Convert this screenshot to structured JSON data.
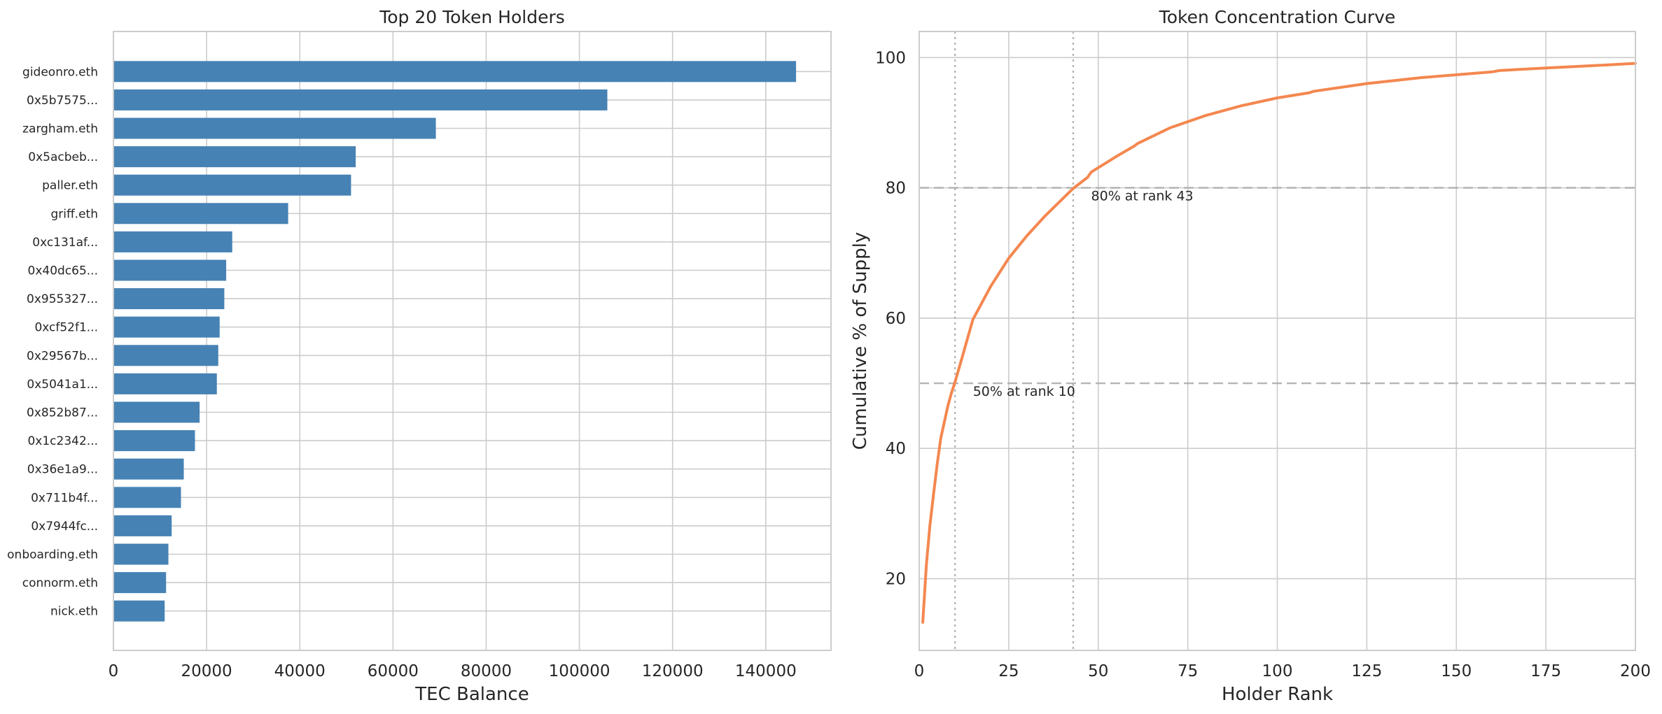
{
  "colors": {
    "bar": "#4682b4",
    "curve": "#f4874f",
    "grid": "#cccccc",
    "refline": "#a9a9a9"
  },
  "chart_data": [
    {
      "type": "bar",
      "orientation": "horizontal",
      "title": "Top 20 Token Holders",
      "xlabel": "TEC Balance",
      "ylabel": "",
      "xlim": [
        0,
        154000
      ],
      "xticks": [
        0,
        20000,
        40000,
        60000,
        80000,
        100000,
        120000,
        140000
      ],
      "xtick_labels": [
        "0",
        "20000",
        "40000",
        "60000",
        "80000",
        "100000",
        "120000",
        "140000"
      ],
      "grid": true,
      "categories": [
        "gideonro.eth",
        "0x5b7575...",
        "zargham.eth",
        "0x5acbeb...",
        "paller.eth",
        "griff.eth",
        "0xc131af...",
        "0x40dc65...",
        "0x955327...",
        "0xcf52f1...",
        "0x29567b...",
        "0x5041a1...",
        "0x852b87...",
        "0x1c2342...",
        "0x36e1a9...",
        "0x711b4f...",
        "0x7944fc...",
        "onboarding.eth",
        "connorm.eth",
        "nick.eth"
      ],
      "values": [
        146500,
        106000,
        69200,
        52000,
        51000,
        37500,
        25500,
        24200,
        23800,
        22800,
        22500,
        22200,
        18500,
        17500,
        15100,
        14500,
        12500,
        11800,
        11300,
        11000
      ]
    },
    {
      "type": "line",
      "title": "Token Concentration Curve",
      "xlabel": "Holder Rank",
      "ylabel": "Cumulative % of Supply",
      "xlim": [
        0,
        200
      ],
      "ylim": [
        9,
        104
      ],
      "xticks": [
        0,
        25,
        50,
        75,
        100,
        125,
        150,
        175,
        200
      ],
      "xtick_labels": [
        "0",
        "25",
        "50",
        "75",
        "100",
        "125",
        "150",
        "175",
        "200"
      ],
      "yticks": [
        20,
        40,
        60,
        80,
        100
      ],
      "ytick_labels": [
        "20",
        "40",
        "60",
        "80",
        "100"
      ],
      "grid": true,
      "x": [
        1,
        2,
        3,
        4,
        5,
        6,
        7,
        8,
        9,
        10,
        12,
        15,
        20,
        25,
        30,
        35,
        40,
        43,
        47,
        48,
        55,
        60,
        61,
        70,
        80,
        90,
        100,
        109,
        110,
        125,
        140,
        160,
        162,
        175,
        190,
        200
      ],
      "y": [
        13.3,
        22.1,
        28.2,
        33.0,
        37.5,
        41.5,
        44.0,
        46.5,
        48.5,
        50.2,
        54.0,
        59.8,
        64.9,
        69.2,
        72.6,
        75.6,
        78.3,
        79.9,
        81.6,
        82.4,
        84.8,
        86.4,
        86.8,
        89.2,
        91.1,
        92.6,
        93.8,
        94.6,
        94.8,
        96.0,
        96.9,
        97.8,
        98.0,
        98.4,
        98.8,
        99.1
      ],
      "reference_lines": [
        {
          "axis": "y",
          "value": 80,
          "style": "dashed"
        },
        {
          "axis": "y",
          "value": 50,
          "style": "dashed"
        },
        {
          "axis": "x",
          "value": 43,
          "style": "dotted"
        },
        {
          "axis": "x",
          "value": 10,
          "style": "dotted"
        }
      ],
      "annotations": [
        {
          "text": "80% at rank 43",
          "x": 48,
          "y": 78.1
        },
        {
          "text": "50% at rank 10",
          "x": 15,
          "y": 48.1
        }
      ]
    }
  ]
}
